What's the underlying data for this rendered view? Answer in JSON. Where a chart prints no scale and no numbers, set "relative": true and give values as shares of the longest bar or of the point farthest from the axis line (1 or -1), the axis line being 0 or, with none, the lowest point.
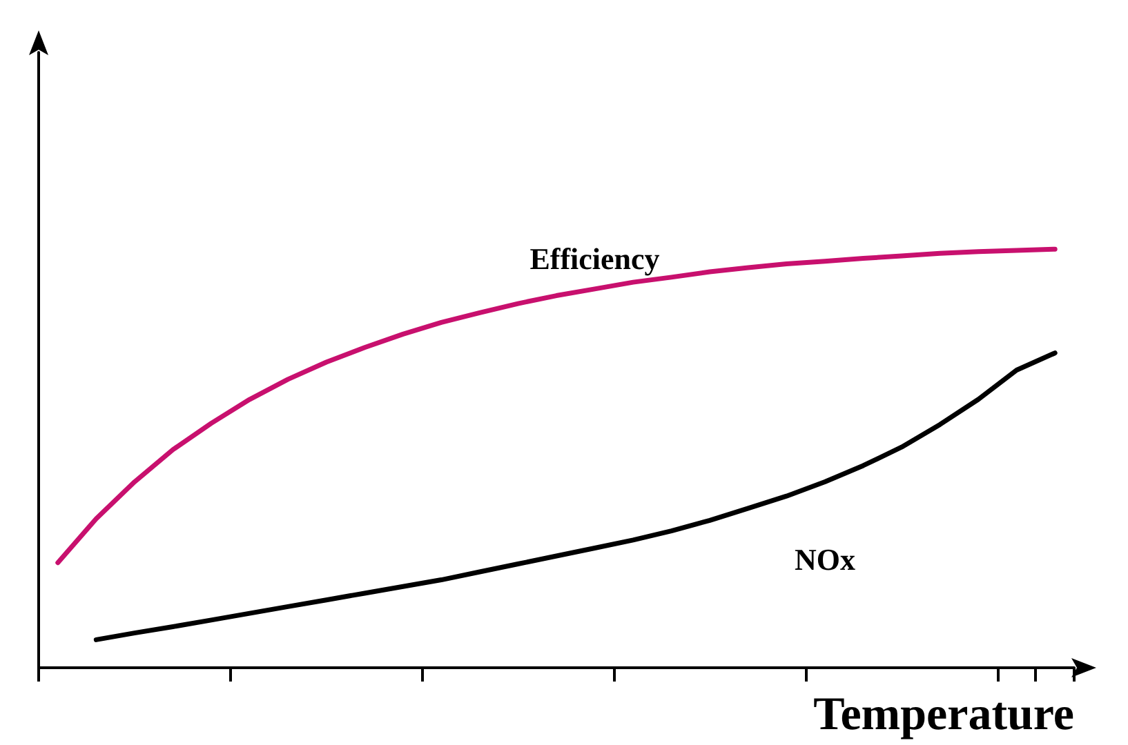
{
  "chart_data": {
    "type": "line",
    "relative": true,
    "xlabel": "Temperature",
    "categories": [
      null,
      null,
      null,
      null,
      null,
      null,
      null,
      null,
      null,
      null,
      null,
      null,
      null,
      null,
      null,
      null,
      null,
      null,
      null,
      null,
      null,
      null,
      null,
      null,
      null,
      null,
      null
    ],
    "marker": "none",
    "legend": false,
    "grid": false,
    "tick_labels": false,
    "series": [
      {
        "name": "Efficiency",
        "color": "#c8106e",
        "values": [
          0.251,
          0.356,
          0.444,
          0.521,
          0.584,
          0.641,
          0.689,
          0.73,
          0.765,
          0.797,
          0.825,
          0.848,
          0.87,
          0.889,
          0.905,
          0.921,
          0.933,
          0.946,
          0.956,
          0.965,
          0.971,
          0.978,
          0.984,
          0.99,
          0.994,
          0.997,
          1
        ]
      },
      {
        "name": "NOx",
        "color": "#000000",
        "values": [
          null,
          0.067,
          0.083,
          0.098,
          0.114,
          0.13,
          0.146,
          0.162,
          0.178,
          0.194,
          0.21,
          0.229,
          0.248,
          0.267,
          0.286,
          0.305,
          0.327,
          0.352,
          0.381,
          0.41,
          0.444,
          0.483,
          0.527,
          0.581,
          0.641,
          0.711,
          0.752
        ]
      }
    ]
  }
}
